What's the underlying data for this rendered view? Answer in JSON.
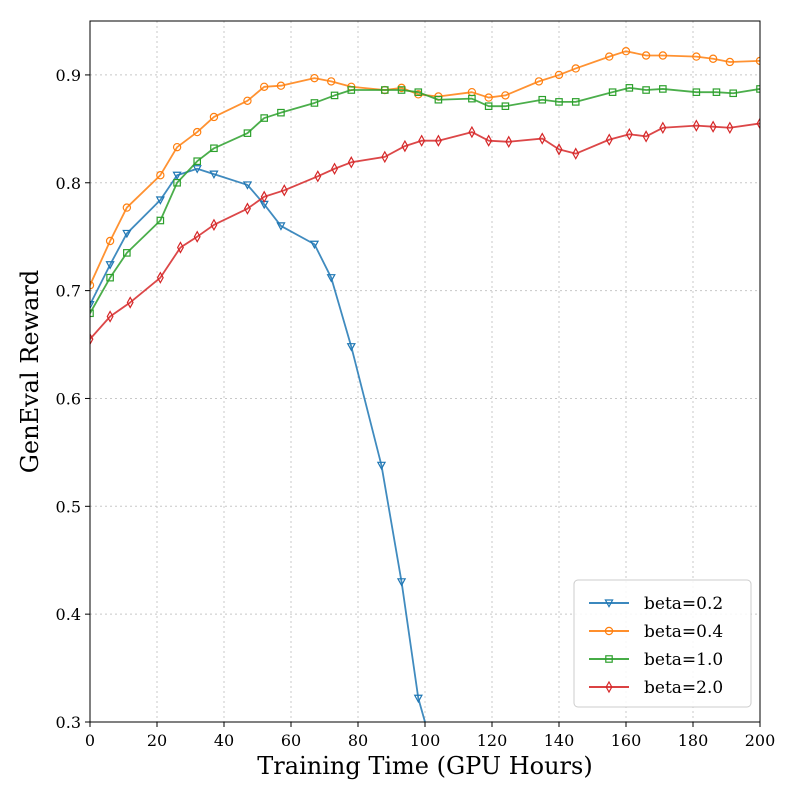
{
  "chart_data": {
    "type": "line",
    "title": "",
    "xlabel": "Training Time (GPU Hours)",
    "ylabel": "GenEval Reward",
    "xlim": [
      0,
      200
    ],
    "ylim": [
      0.3,
      0.95
    ],
    "xticks": [
      0,
      20,
      40,
      60,
      80,
      100,
      120,
      140,
      160,
      180,
      200
    ],
    "yticks": [
      0.3,
      0.4,
      0.5,
      0.6,
      0.7,
      0.8,
      0.9
    ],
    "grid": true,
    "legend_position": "bottom-right",
    "series": [
      {
        "name": "beta=0.2",
        "color": "#1f77b4",
        "marker": "triangle-down",
        "x": [
          0,
          6,
          11,
          21,
          26,
          32,
          37,
          47,
          52,
          57,
          67,
          72,
          78,
          87,
          93,
          98,
          100
        ],
        "y": [
          0.687,
          0.724,
          0.753,
          0.784,
          0.807,
          0.813,
          0.808,
          0.798,
          0.78,
          0.76,
          0.743,
          0.712,
          0.648,
          0.538,
          0.43,
          0.322,
          0.3
        ]
      },
      {
        "name": "beta=0.4",
        "color": "#ff7f0e",
        "marker": "circle",
        "x": [
          0,
          6,
          11,
          21,
          26,
          32,
          37,
          47,
          52,
          57,
          67,
          72,
          78,
          88,
          93,
          98,
          104,
          114,
          119,
          124,
          134,
          140,
          145,
          155,
          160,
          166,
          171,
          181,
          186,
          191,
          200
        ],
        "y": [
          0.705,
          0.746,
          0.777,
          0.807,
          0.833,
          0.847,
          0.861,
          0.876,
          0.889,
          0.89,
          0.897,
          0.894,
          0.889,
          0.886,
          0.888,
          0.882,
          0.88,
          0.884,
          0.879,
          0.881,
          0.894,
          0.9,
          0.906,
          0.917,
          0.922,
          0.918,
          0.918,
          0.917,
          0.915,
          0.912,
          0.913
        ]
      },
      {
        "name": "beta=1.0",
        "color": "#2ca02c",
        "marker": "square",
        "x": [
          0,
          6,
          11,
          21,
          26,
          32,
          37,
          47,
          52,
          57,
          67,
          73,
          78,
          88,
          93,
          98,
          104,
          114,
          119,
          124,
          135,
          140,
          145,
          156,
          161,
          166,
          171,
          181,
          187,
          192,
          200
        ],
        "y": [
          0.679,
          0.712,
          0.735,
          0.765,
          0.8,
          0.82,
          0.832,
          0.846,
          0.86,
          0.865,
          0.874,
          0.881,
          0.886,
          0.886,
          0.886,
          0.884,
          0.877,
          0.878,
          0.871,
          0.871,
          0.877,
          0.875,
          0.875,
          0.884,
          0.888,
          0.886,
          0.887,
          0.884,
          0.884,
          0.883,
          0.887
        ]
      },
      {
        "name": "beta=2.0",
        "color": "#d62728",
        "marker": "thin-diamond",
        "x": [
          0,
          6,
          12,
          21,
          27,
          32,
          37,
          47,
          52,
          58,
          68,
          73,
          78,
          88,
          94,
          99,
          104,
          114,
          119,
          125,
          135,
          140,
          145,
          155,
          161,
          166,
          171,
          181,
          186,
          191,
          200
        ],
        "y": [
          0.655,
          0.676,
          0.689,
          0.712,
          0.74,
          0.75,
          0.761,
          0.776,
          0.787,
          0.793,
          0.806,
          0.813,
          0.819,
          0.824,
          0.834,
          0.839,
          0.839,
          0.847,
          0.839,
          0.838,
          0.841,
          0.831,
          0.827,
          0.84,
          0.845,
          0.843,
          0.851,
          0.853,
          0.852,
          0.851,
          0.855
        ]
      }
    ]
  }
}
